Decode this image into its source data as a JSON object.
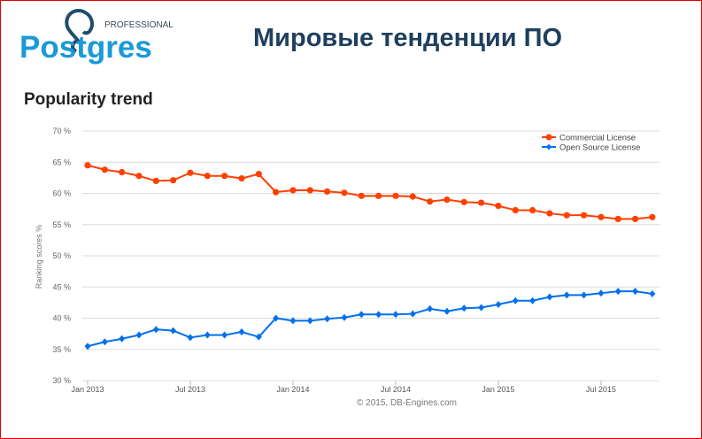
{
  "logo": {
    "word": "Postgres",
    "tagline": "PROFESSIONAL"
  },
  "slide_title": "Мировые тенденции ПО",
  "section_title": "Popularity trend",
  "credit": "© 2015, DB-Engines.com",
  "chart_data": {
    "type": "line",
    "title": "",
    "xlabel": "",
    "ylabel": "Ranking scores %",
    "ylim": [
      30,
      70
    ],
    "yticks": [
      "30 %",
      "35 %",
      "40 %",
      "45 %",
      "50 %",
      "55 %",
      "60 %",
      "65 %",
      "70 %"
    ],
    "xtick_labels": [
      "Jan 2013",
      "Jul 2013",
      "Jan 2014",
      "Jul 2014",
      "Jan 2015",
      "Jul 2015"
    ],
    "x": [
      "2013-01",
      "2013-02",
      "2013-03",
      "2013-04",
      "2013-05",
      "2013-06",
      "2013-07",
      "2013-08",
      "2013-09",
      "2013-10",
      "2013-11",
      "2013-12",
      "2014-01",
      "2014-02",
      "2014-03",
      "2014-04",
      "2014-05",
      "2014-06",
      "2014-07",
      "2014-08",
      "2014-09",
      "2014-10",
      "2014-11",
      "2014-12",
      "2015-01",
      "2015-02",
      "2015-03",
      "2015-04",
      "2015-05",
      "2015-06",
      "2015-07",
      "2015-08",
      "2015-09",
      "2015-10"
    ],
    "grid": true,
    "legend_position": "top-right",
    "series": [
      {
        "name": "Commercial License",
        "color": "#ff4000",
        "marker": "circle",
        "values": [
          64.5,
          63.8,
          63.4,
          62.8,
          62.0,
          62.1,
          63.3,
          62.8,
          62.8,
          62.4,
          63.1,
          60.2,
          60.5,
          60.5,
          60.3,
          60.1,
          59.6,
          59.6,
          59.6,
          59.5,
          58.7,
          59.0,
          58.6,
          58.5,
          58.0,
          57.3,
          57.3,
          56.8,
          56.5,
          56.5,
          56.2,
          55.9,
          55.9,
          56.2
        ]
      },
      {
        "name": "Open Source License",
        "color": "#0070f0",
        "marker": "diamond",
        "values": [
          35.5,
          36.2,
          36.7,
          37.3,
          38.2,
          38.0,
          36.9,
          37.3,
          37.3,
          37.8,
          37.0,
          40.0,
          39.6,
          39.6,
          39.9,
          40.1,
          40.6,
          40.6,
          40.6,
          40.7,
          41.5,
          41.1,
          41.6,
          41.7,
          42.2,
          42.8,
          42.8,
          43.4,
          43.7,
          43.7,
          44.0,
          44.3,
          44.3,
          43.9
        ]
      }
    ]
  }
}
